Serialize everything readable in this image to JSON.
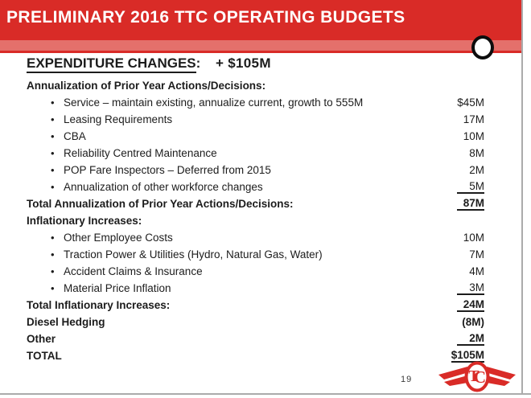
{
  "header": {
    "title": "PRELIMINARY 2016 TTC OPERATING BUDGETS"
  },
  "colors": {
    "header_red": "#d92b27",
    "stripe_red": "#e4706b",
    "text": "#1c1c1c",
    "edge_gray": "#ababab",
    "logo_red": "#d92b27"
  },
  "icons": {
    "bullet": "•",
    "circle_decoration": "circle-marker",
    "logo": "ttc-logo"
  },
  "expenditure_heading": {
    "label": "EXPENDITURE CHANGES",
    "separator": ":",
    "amount": "+ $105M"
  },
  "rows": [
    {
      "type": "section",
      "label": "Annualization of Prior Year Actions/Decisions:"
    },
    {
      "type": "bullet",
      "label": "Service – maintain existing, annualize current, growth to 555M",
      "value": "$45M"
    },
    {
      "type": "bullet",
      "label": "Leasing Requirements",
      "value": "17M"
    },
    {
      "type": "bullet",
      "label": "CBA",
      "value": "10M"
    },
    {
      "type": "bullet",
      "label": "Reliability Centred Maintenance",
      "value": "8M"
    },
    {
      "type": "bullet",
      "label": "POP Fare Inspectors – Deferred from 2015",
      "value": "2M"
    },
    {
      "type": "bullet",
      "label": "Annualization of other workforce changes",
      "value": "5M",
      "value_underline": true
    },
    {
      "type": "total",
      "label": "Total Annualization of Prior Year Actions/Decisions:",
      "value": "87M",
      "value_underline": true
    },
    {
      "type": "section",
      "label": "Inflationary Increases:"
    },
    {
      "type": "bullet",
      "label": "Other Employee Costs",
      "value": "10M"
    },
    {
      "type": "bullet",
      "label": "Traction Power & Utilities (Hydro, Natural Gas, Water)",
      "value": "7M"
    },
    {
      "type": "bullet",
      "label": "Accident Claims & Insurance",
      "value": "4M"
    },
    {
      "type": "bullet",
      "label": "Material Price Inflation",
      "value": "3M",
      "value_underline": true
    },
    {
      "type": "total",
      "label": "Total Inflationary Increases:",
      "value": "24M",
      "value_underline": true
    },
    {
      "type": "total",
      "label": "Diesel Hedging",
      "value": "(8M)"
    },
    {
      "type": "total",
      "label": "Other",
      "value": "2M",
      "value_underline": true
    },
    {
      "type": "total",
      "label": "TOTAL",
      "value": "$105M",
      "value_underline": true
    }
  ],
  "footer": {
    "page_number": "19"
  }
}
